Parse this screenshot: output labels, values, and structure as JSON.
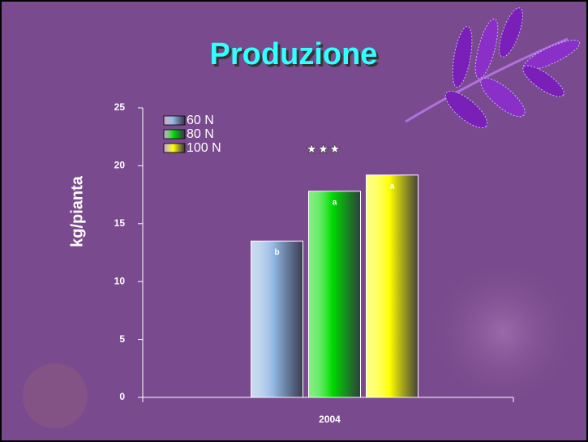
{
  "chart_data": {
    "type": "bar",
    "title": "Produzione",
    "y_label": "kg/pianta",
    "categories": [
      "2004"
    ],
    "series": [
      {
        "name": "60 N",
        "color": "#8fb4e0",
        "values": [
          13.5
        ],
        "letters": [
          "b"
        ]
      },
      {
        "name": "80 N",
        "color": "#00dd00",
        "values": [
          17.8
        ],
        "letters": [
          "a"
        ]
      },
      {
        "name": "100 N",
        "color": "#ffff00",
        "values": [
          19.2
        ],
        "letters": [
          "a"
        ]
      }
    ],
    "annotation": "★★★",
    "ylim": [
      0,
      25
    ],
    "yticks": [
      0,
      5,
      10,
      15,
      20,
      25
    ],
    "grid": false
  }
}
